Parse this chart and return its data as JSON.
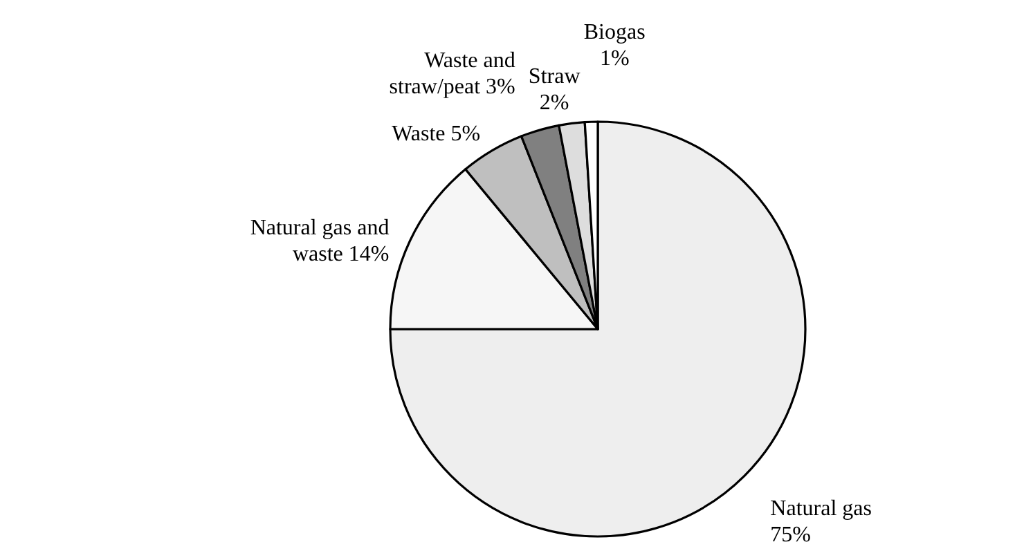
{
  "chart_data": {
    "type": "pie",
    "categories": [
      "Natural gas",
      "Natural gas and waste",
      "Waste",
      "Waste and straw/peat",
      "Straw",
      "Biogas"
    ],
    "values": [
      75,
      14,
      5,
      3,
      2,
      1
    ],
    "colors": [
      "#eeeeee",
      "#f6f6f6",
      "#bfbfbf",
      "#808080",
      "#dddddd",
      "#ffffff"
    ],
    "value_labels": [
      "75%",
      "14%",
      "5%",
      "3%",
      "2%",
      "1%"
    ]
  }
}
